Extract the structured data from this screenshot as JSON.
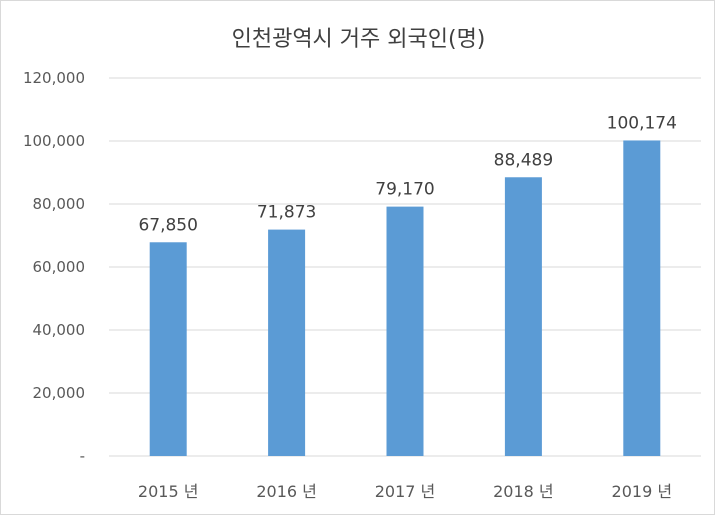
{
  "chart_data": {
    "type": "bar",
    "title": "인천광역시 거주 외국인(명)",
    "categories": [
      "2015 년",
      "2016 년",
      "2017 년",
      "2018 년",
      "2019 년"
    ],
    "values": [
      67850,
      71873,
      79170,
      88489,
      100174
    ],
    "data_labels": [
      "67,850",
      "71,873",
      "79,170",
      "88,489",
      "100,174"
    ],
    "ylim": [
      0,
      120000
    ],
    "yticks": [
      0,
      20000,
      40000,
      60000,
      80000,
      100000,
      120000
    ],
    "ytick_labels": [
      "-",
      "20,000",
      "40,000",
      "60,000",
      "80,000",
      "100,000",
      "120,000"
    ],
    "xlabel": "",
    "ylabel": "",
    "grid": true,
    "legend": "none",
    "colors": {
      "bar": "#5b9bd5",
      "grid": "#d9d9d9",
      "text": "#595959"
    }
  }
}
